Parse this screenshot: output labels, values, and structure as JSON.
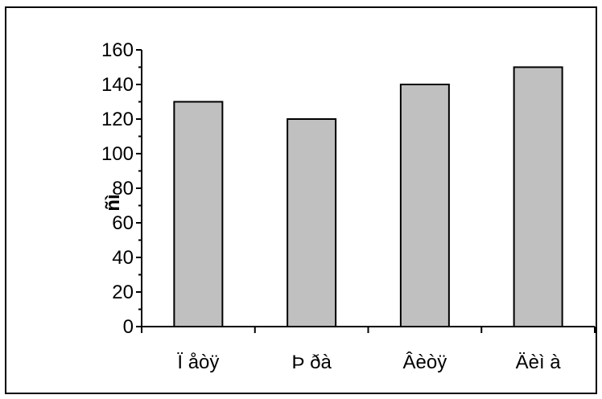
{
  "chart_data": {
    "type": "bar",
    "categories": [
      "Ï åòÿ",
      "Þ ðà",
      "Âèòÿ",
      "Äèì à"
    ],
    "values": [
      130,
      120,
      140,
      150
    ],
    "title": "",
    "xlabel": "",
    "ylabel": "ñì",
    "ylim": [
      0,
      160
    ],
    "yticks": [
      0,
      20,
      40,
      60,
      80,
      100,
      120,
      140,
      160
    ],
    "grid": false,
    "legend": "none",
    "bar_color": "#c0c0c0",
    "bar_outline": "#000000"
  }
}
